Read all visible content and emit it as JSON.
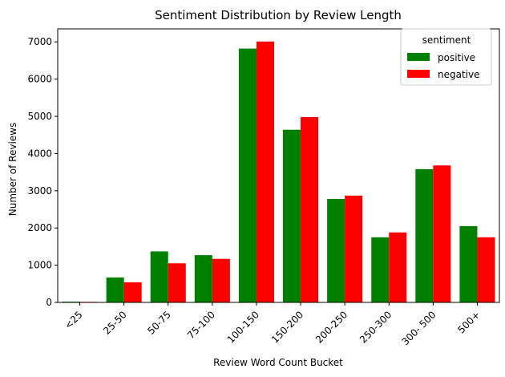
{
  "chart_data": {
    "type": "bar",
    "title": "Sentiment Distribution by Review Length",
    "xlabel": "Review Word Count Bucket",
    "ylabel": "Number of Reviews",
    "categories": [
      "<25",
      "25-50",
      "50-75",
      "75-100",
      "100-150",
      "150-200",
      "200-250",
      "250-300",
      "300- 500",
      "500+"
    ],
    "series": [
      {
        "name": "positive",
        "color": "#008000",
        "values": [
          20,
          670,
          1370,
          1270,
          6820,
          4640,
          2780,
          1750,
          3580,
          2050
        ]
      },
      {
        "name": "negative",
        "color": "#ff0000",
        "values": [
          15,
          540,
          1050,
          1170,
          7010,
          4980,
          2870,
          1880,
          3680,
          1750
        ]
      }
    ],
    "ylim": [
      0,
      7350
    ],
    "yticks": [
      0,
      1000,
      2000,
      3000,
      4000,
      5000,
      6000,
      7000
    ],
    "x_tick_rotation": 45,
    "grid": false,
    "legend": {
      "title": "sentiment",
      "placement": "top-right"
    }
  }
}
